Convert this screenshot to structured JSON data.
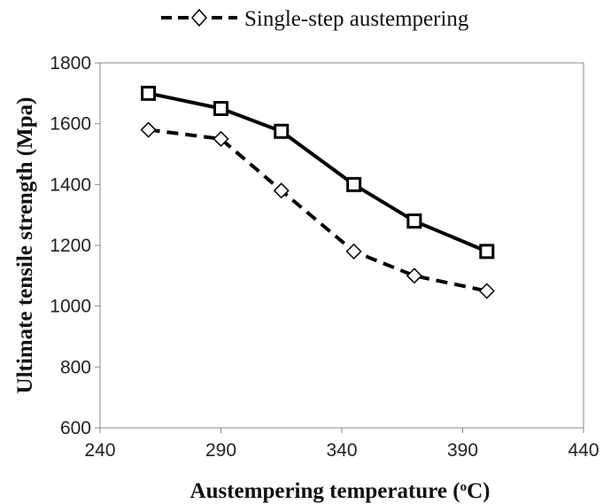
{
  "chart_data": {
    "type": "line",
    "xlabel": "Austempering temperature (",
    "xlabel_sup": "o",
    "xlabel_unit": "C)",
    "ylabel": "Ultimate tensile strength (Mpa)",
    "xlim": [
      240,
      440
    ],
    "ylim": [
      600,
      1800
    ],
    "xticks": [
      240,
      290,
      340,
      390,
      440
    ],
    "yticks": [
      600,
      800,
      1000,
      1200,
      1400,
      1600,
      1800
    ],
    "grid": false,
    "legend_position": "top-center",
    "series": [
      {
        "values_x": [
          260,
          290,
          315,
          345,
          370,
          400
        ],
        "values_y": [
          1700,
          1650,
          1575,
          1400,
          1280,
          1180
        ],
        "line_style": "solid",
        "marker": "square",
        "color": "#000000"
      },
      {
        "name": "Single-step austempering",
        "values_x": [
          260,
          290,
          315,
          345,
          370,
          400
        ],
        "values_y": [
          1580,
          1550,
          1380,
          1180,
          1100,
          1050
        ],
        "line_style": "dashed",
        "marker": "diamond",
        "color": "#000000"
      }
    ]
  }
}
